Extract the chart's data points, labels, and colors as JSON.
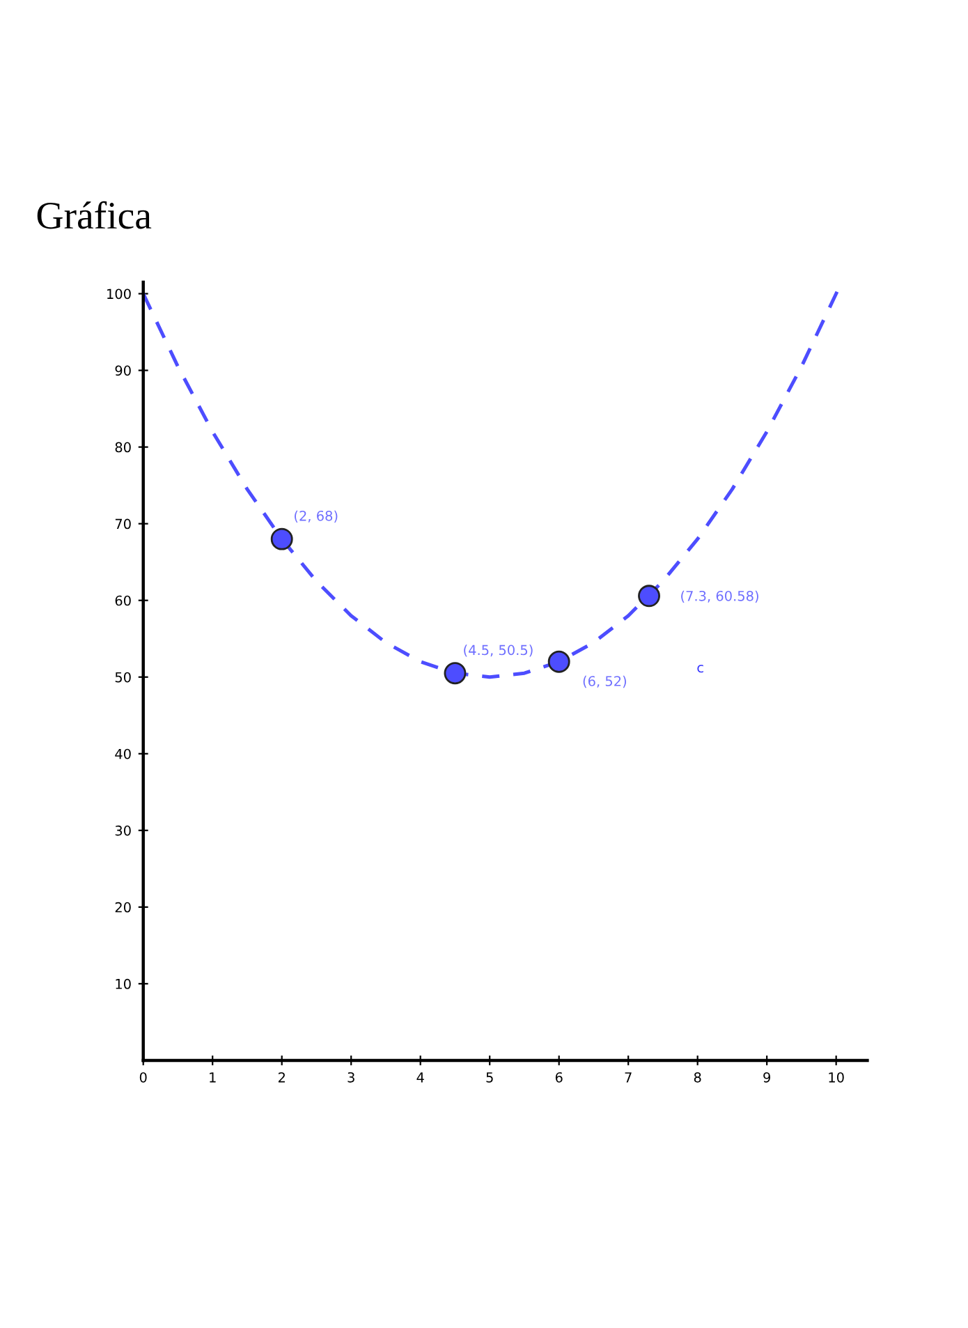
{
  "chart_data": {
    "type": "scatter",
    "title": "Gráfica",
    "xlim": [
      0,
      10.45
    ],
    "ylim": [
      0,
      101.5
    ],
    "xticks": [
      0,
      1,
      2,
      3,
      4,
      5,
      6,
      7,
      8,
      9,
      10
    ],
    "yticks": [
      10,
      20,
      30,
      40,
      50,
      60,
      70,
      80,
      90,
      100
    ],
    "grid": false,
    "series": [
      {
        "type": "line",
        "color": "#4d4dff",
        "line_style": "dashed",
        "marker": "none",
        "x": [
          0,
          0.5,
          1,
          1.5,
          2,
          2.5,
          3,
          3.5,
          4,
          4.5,
          5,
          5.5,
          6,
          6.5,
          7,
          7.5,
          8,
          8.5,
          9,
          9.5,
          10,
          10.05
        ],
        "values": [
          100,
          90.5,
          82,
          74.5,
          68,
          62.5,
          58,
          54.5,
          52,
          50.5,
          50,
          50.5,
          52,
          54.5,
          58,
          62.5,
          68,
          74.5,
          82,
          90.5,
          100,
          101
        ]
      },
      {
        "color": "#4d4dff",
        "marker": "circle",
        "x": [
          2,
          4.5,
          6,
          7.3
        ],
        "values": [
          68,
          50.5,
          52,
          60.58
        ],
        "value_labels": [
          "(2, 68)",
          "(4.5, 50.5)",
          "(6, 52)",
          "(7.3, 60.58)"
        ]
      }
    ],
    "annotations": [
      "c"
    ]
  }
}
